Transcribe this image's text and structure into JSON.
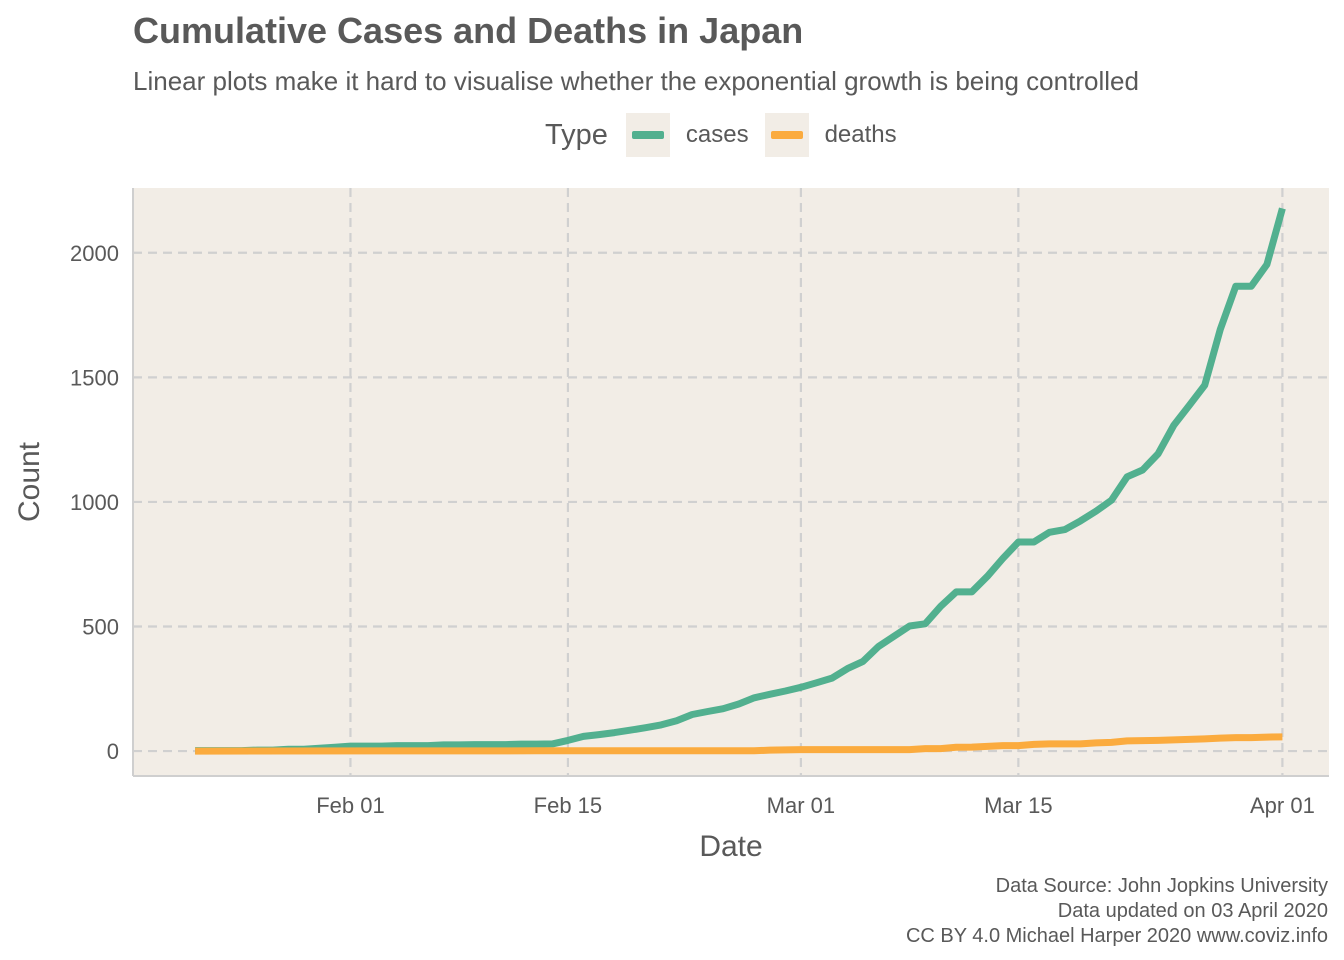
{
  "chart_data": {
    "type": "line",
    "title": "Cumulative Cases and Deaths in Japan",
    "subtitle": "Linear plots make it hard to visualise whether the exponential growth is being controlled",
    "xlabel": "Date",
    "ylabel": "Count",
    "ylim": [
      -100,
      2260
    ],
    "xlim": [
      "2020-01-18",
      "2020-04-04"
    ],
    "x_ticks": [
      {
        "date": "2020-02-01",
        "label": "Feb 01"
      },
      {
        "date": "2020-02-15",
        "label": "Feb 15"
      },
      {
        "date": "2020-03-01",
        "label": "Mar 01"
      },
      {
        "date": "2020-03-15",
        "label": "Mar 15"
      },
      {
        "date": "2020-04-01",
        "label": "Apr 01"
      }
    ],
    "y_ticks": [
      0,
      500,
      1000,
      1500,
      2000
    ],
    "y_tick_labels": [
      "0",
      "500",
      "1000",
      "1500",
      "2000"
    ],
    "grid": true,
    "grid_style": "dashed",
    "panel_background": "#f2ede6",
    "legend": {
      "title": "Type",
      "position": "top"
    },
    "series": [
      {
        "name": "cases",
        "color": "#52b08f",
        "points": [
          [
            "2020-01-22",
            2
          ],
          [
            "2020-01-23",
            2
          ],
          [
            "2020-01-24",
            2
          ],
          [
            "2020-01-25",
            2
          ],
          [
            "2020-01-26",
            4
          ],
          [
            "2020-01-27",
            4
          ],
          [
            "2020-01-28",
            7
          ],
          [
            "2020-01-29",
            7
          ],
          [
            "2020-01-30",
            11
          ],
          [
            "2020-01-31",
            15
          ],
          [
            "2020-02-01",
            20
          ],
          [
            "2020-02-02",
            20
          ],
          [
            "2020-02-03",
            20
          ],
          [
            "2020-02-04",
            22
          ],
          [
            "2020-02-05",
            22
          ],
          [
            "2020-02-06",
            22
          ],
          [
            "2020-02-07",
            25
          ],
          [
            "2020-02-08",
            25
          ],
          [
            "2020-02-09",
            26
          ],
          [
            "2020-02-10",
            26
          ],
          [
            "2020-02-11",
            26
          ],
          [
            "2020-02-12",
            28
          ],
          [
            "2020-02-13",
            28
          ],
          [
            "2020-02-14",
            29
          ],
          [
            "2020-02-15",
            43
          ],
          [
            "2020-02-16",
            59
          ],
          [
            "2020-02-17",
            66
          ],
          [
            "2020-02-18",
            74
          ],
          [
            "2020-02-19",
            84
          ],
          [
            "2020-02-20",
            94
          ],
          [
            "2020-02-21",
            105
          ],
          [
            "2020-02-22",
            122
          ],
          [
            "2020-02-23",
            147
          ],
          [
            "2020-02-24",
            159
          ],
          [
            "2020-02-25",
            170
          ],
          [
            "2020-02-26",
            189
          ],
          [
            "2020-02-27",
            214
          ],
          [
            "2020-02-28",
            228
          ],
          [
            "2020-02-29",
            241
          ],
          [
            "2020-03-01",
            256
          ],
          [
            "2020-03-02",
            274
          ],
          [
            "2020-03-03",
            293
          ],
          [
            "2020-03-04",
            331
          ],
          [
            "2020-03-05",
            360
          ],
          [
            "2020-03-06",
            420
          ],
          [
            "2020-03-07",
            461
          ],
          [
            "2020-03-08",
            502
          ],
          [
            "2020-03-09",
            511
          ],
          [
            "2020-03-10",
            581
          ],
          [
            "2020-03-11",
            639
          ],
          [
            "2020-03-12",
            639
          ],
          [
            "2020-03-13",
            701
          ],
          [
            "2020-03-14",
            773
          ],
          [
            "2020-03-15",
            839
          ],
          [
            "2020-03-16",
            839
          ],
          [
            "2020-03-17",
            878
          ],
          [
            "2020-03-18",
            889
          ],
          [
            "2020-03-19",
            924
          ],
          [
            "2020-03-20",
            963
          ],
          [
            "2020-03-21",
            1007
          ],
          [
            "2020-03-22",
            1101
          ],
          [
            "2020-03-23",
            1128
          ],
          [
            "2020-03-24",
            1193
          ],
          [
            "2020-03-25",
            1307
          ],
          [
            "2020-03-26",
            1387
          ],
          [
            "2020-03-27",
            1468
          ],
          [
            "2020-03-28",
            1693
          ],
          [
            "2020-03-29",
            1866
          ],
          [
            "2020-03-30",
            1866
          ],
          [
            "2020-03-31",
            1953
          ],
          [
            "2020-04-01",
            2178
          ]
        ]
      },
      {
        "name": "deaths",
        "color": "#fbab3e",
        "points": [
          [
            "2020-01-22",
            0
          ],
          [
            "2020-02-13",
            1
          ],
          [
            "2020-02-27",
            1
          ],
          [
            "2020-02-28",
            4
          ],
          [
            "2020-03-01",
            6
          ],
          [
            "2020-03-08",
            6
          ],
          [
            "2020-03-09",
            10
          ],
          [
            "2020-03-10",
            10
          ],
          [
            "2020-03-11",
            15
          ],
          [
            "2020-03-12",
            16
          ],
          [
            "2020-03-13",
            19
          ],
          [
            "2020-03-14",
            22
          ],
          [
            "2020-03-15",
            22
          ],
          [
            "2020-03-16",
            27
          ],
          [
            "2020-03-17",
            29
          ],
          [
            "2020-03-18",
            29
          ],
          [
            "2020-03-19",
            29
          ],
          [
            "2020-03-20",
            33
          ],
          [
            "2020-03-21",
            35
          ],
          [
            "2020-03-22",
            41
          ],
          [
            "2020-03-23",
            42
          ],
          [
            "2020-03-24",
            43
          ],
          [
            "2020-03-25",
            45
          ],
          [
            "2020-03-26",
            47
          ],
          [
            "2020-03-27",
            49
          ],
          [
            "2020-03-28",
            52
          ],
          [
            "2020-03-29",
            54
          ],
          [
            "2020-03-30",
            54
          ],
          [
            "2020-03-31",
            56
          ],
          [
            "2020-04-01",
            57
          ]
        ]
      }
    ]
  },
  "caption": {
    "line1": "Data Source: John Jopkins University",
    "line2": "Data updated on 03 April 2020",
    "line3": "CC BY 4.0 Michael Harper 2020 www.coviz.info"
  }
}
